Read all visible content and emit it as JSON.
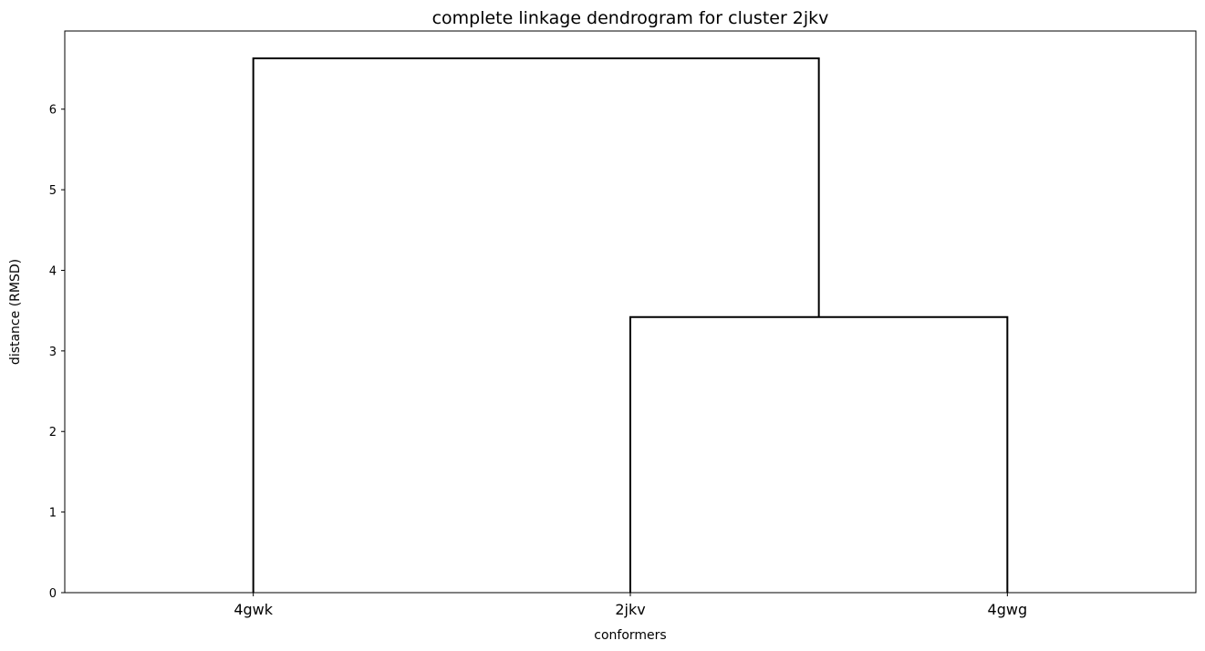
{
  "chart_data": {
    "type": "dendrogram",
    "title": "complete linkage dendrogram for cluster 2jkv",
    "xlabel": "conformers",
    "ylabel": "distance (RMSD)",
    "leaves": [
      "4gwk",
      "2jkv",
      "4gwg"
    ],
    "merges": [
      {
        "left": "2jkv",
        "right": "4gwg",
        "distance": 3.42
      },
      {
        "left": "4gwk",
        "right": "(2jkv, 4gwg)",
        "distance": 6.63
      }
    ],
    "ylim": [
      0,
      6.97
    ],
    "yticks": [
      0,
      1,
      2,
      3,
      4,
      5,
      6
    ],
    "line_color": "#000000",
    "grid": false
  }
}
